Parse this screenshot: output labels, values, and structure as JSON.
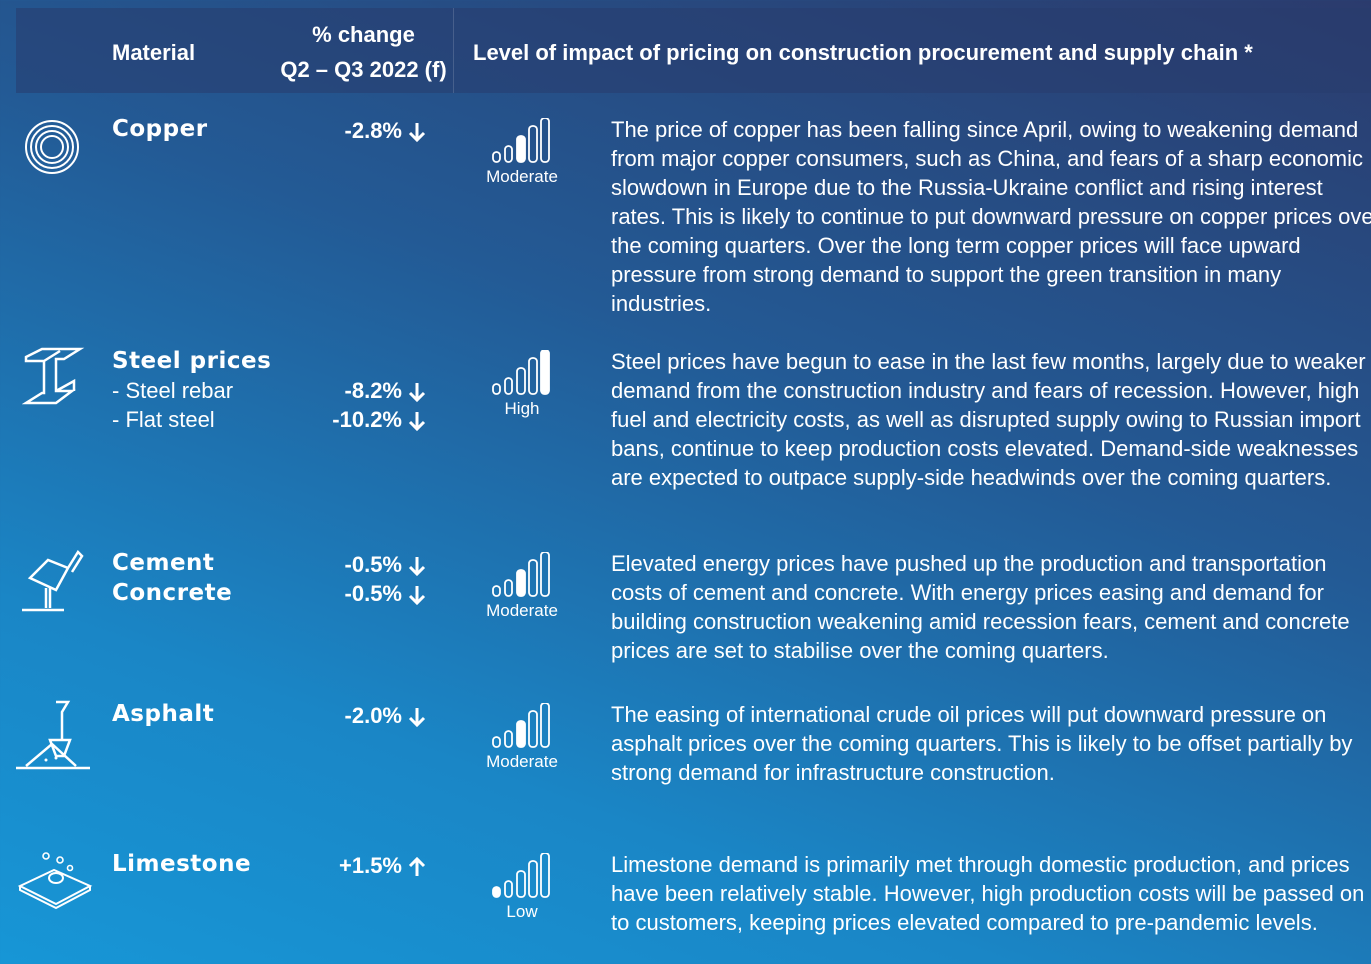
{
  "header": {
    "material": "Material",
    "change": [
      "% change",
      "Q2 – Q3 2022 (f)"
    ],
    "impact": "Level of impact of pricing on construction procurement and supply chain *"
  },
  "rows": [
    {
      "material": "Copper",
      "items": [],
      "changes": [
        "-2.8%"
      ],
      "impact": "Moderate",
      "description": "The price of copper has been falling since April, owing to weakening demand from major copper consumers, such as China, and fears of a sharp economic slowdown in Europe due to the Russia-Ukraine conflict and rising interest rates. This is likely to continue to put downward pressure on copper prices over the coming quarters. Over the long term copper prices will face upward pressure from strong demand to support the green transition in many industries."
    },
    {
      "material": "Steel prices",
      "items": [
        "- Steel rebar",
        "- Flat steel"
      ],
      "changes": [
        "-8.2%",
        "-10.2%"
      ],
      "impact": "High",
      "description": "Steel prices have begun to ease in the last few months, largely due to weaker demand from the construction industry and fears of recession. However, high fuel and electricity costs, as well as disrupted supply owing to Russian import bans, continue to keep production costs elevated. Demand-side weaknesses are expected to outpace supply-side headwinds over the coming quarters."
    },
    {
      "material": "Cement",
      "items": [],
      "changes": [
        "-0.5%"
      ],
      "impact": "Moderate",
      "description": "Elevated energy prices have pushed up the production and transportation costs of cement and concrete. With energy prices easing and demand for building construction weakening amid recession fears, cement and concrete prices are set to stabilise over the coming quarters."
    },
    {
      "material": "Asphalt",
      "items": [],
      "changes": [
        "-2.0%"
      ],
      "impact": "Moderate",
      "description": "The easing of international crude oil prices will put downward pressure on asphalt prices over the coming quarters. This is likely to be offset partially by strong demand for infrastructure construction."
    },
    {
      "material": "Limestone",
      "items": [],
      "changes": [
        "+1.5%"
      ],
      "impact": "Low",
      "description": "Limestone demand is primarily met through domestic production, and prices have been relatively stable. However, high production costs will be passed on to customers, keeping prices elevated compared to pre-pandemic levels."
    }
  ],
  "concrete": {
    "material": "Concrete",
    "change": "-0.5%"
  }
}
